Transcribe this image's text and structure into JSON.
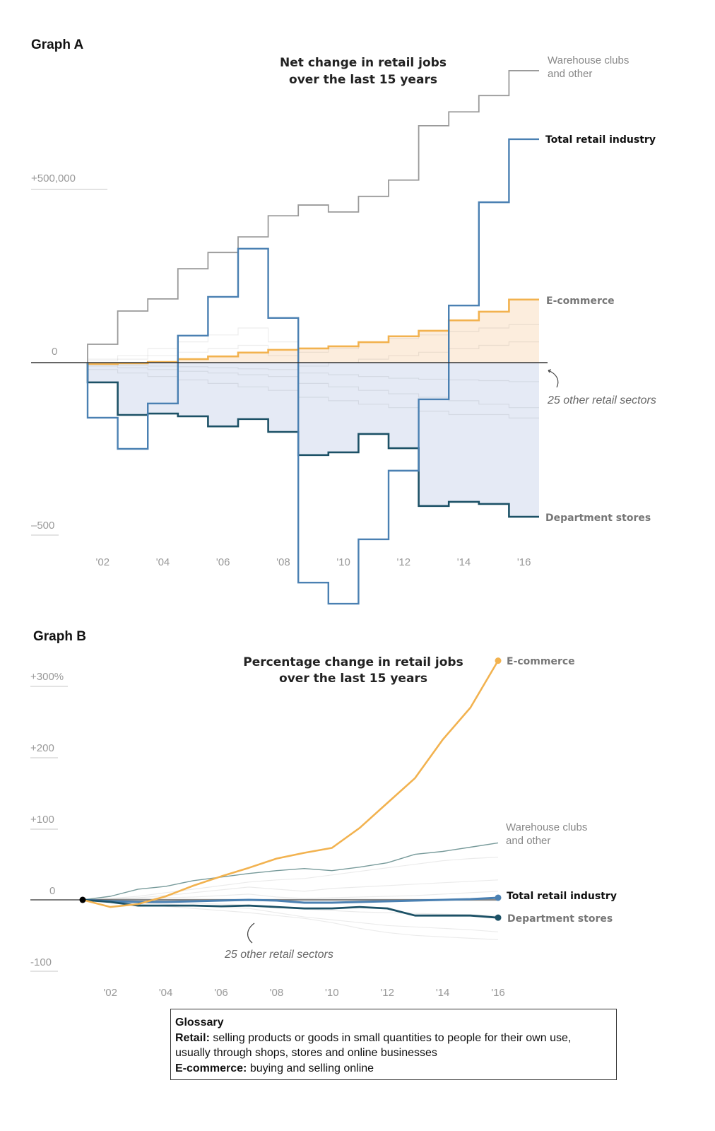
{
  "colors": {
    "warehouse": "#9a9a9a",
    "total": "#4a80b2",
    "ecommerce": "#f2b24f",
    "department": "#1c5166",
    "other": "#d8d8d8",
    "neg_fill": "#e5eaf5",
    "pos_fill": "#fbe9d4",
    "zero": "#333333"
  },
  "chart_data": [
    {
      "id": "graph-a",
      "label": "Graph A",
      "type": "line",
      "step": true,
      "title": [
        "Net change in retail jobs",
        "over the last 15 years"
      ],
      "x": [
        2002,
        2003,
        2004,
        2005,
        2006,
        2007,
        2008,
        2009,
        2010,
        2011,
        2012,
        2013,
        2014,
        2015,
        2016
      ],
      "x_tick_labels": [
        "'02",
        "'04",
        "'06",
        "'08",
        "'10",
        "'12",
        "'14",
        "'16"
      ],
      "y_tick_labels": [
        "+500,000",
        "0",
        "–500"
      ],
      "ylim": [
        -700000,
        850000
      ],
      "series": [
        {
          "key": "warehouse",
          "name": "Warehouse clubs and other",
          "label_lines": [
            "Warehouse clubs",
            "and other"
          ],
          "values": [
            53000,
            149000,
            184000,
            271000,
            318000,
            363000,
            424000,
            455000,
            435000,
            480000,
            527000,
            684000,
            724000,
            771000,
            843000
          ]
        },
        {
          "key": "total",
          "name": "Total retail industry",
          "values": [
            -159000,
            -249000,
            -118000,
            78000,
            190000,
            329000,
            129000,
            -635000,
            -696000,
            -510000,
            -312000,
            -106000,
            165000,
            463000,
            645000
          ]
        },
        {
          "key": "ecommerce",
          "name": "E-commerce",
          "values": [
            -4000,
            -2000,
            2000,
            10000,
            18000,
            29000,
            37000,
            41000,
            47000,
            59000,
            76000,
            92000,
            122000,
            147000,
            182000
          ]
        },
        {
          "key": "department",
          "name": "Department stores",
          "values": [
            -57000,
            -151000,
            -147000,
            -155000,
            -184000,
            -163000,
            -200000,
            -267000,
            -259000,
            -206000,
            -247000,
            -414000,
            -402000,
            -408000,
            -445000
          ]
        }
      ],
      "other_sectors": {
        "name": "25 other retail sectors",
        "series": [
          [
            10000,
            20000,
            40000,
            60000,
            80000,
            100000,
            60000,
            30000,
            40000,
            60000,
            70000,
            80000,
            90000,
            100000,
            110000
          ],
          [
            5000,
            10000,
            20000,
            30000,
            40000,
            50000,
            20000,
            -10000,
            0,
            10000,
            20000,
            30000,
            40000,
            50000,
            60000
          ],
          [
            -10000,
            -15000,
            -20000,
            -25000,
            -30000,
            -35000,
            -40000,
            -60000,
            -70000,
            -80000,
            -90000,
            -100000,
            -110000,
            -120000,
            -130000
          ],
          [
            -20000,
            -30000,
            -40000,
            -50000,
            -60000,
            -70000,
            -80000,
            -100000,
            -110000,
            -120000,
            -130000,
            -140000,
            -150000,
            -150000,
            -160000
          ],
          [
            -5000,
            -8000,
            -10000,
            -12000,
            -15000,
            -18000,
            -20000,
            -30000,
            -35000,
            -40000,
            -45000,
            -48000,
            -50000,
            -52000,
            -55000
          ]
        ]
      }
    },
    {
      "id": "graph-b",
      "label": "Graph B",
      "type": "line",
      "title": [
        "Percentage change in retail jobs",
        "over the last 15 years"
      ],
      "x": [
        2001,
        2002,
        2003,
        2004,
        2005,
        2006,
        2007,
        2008,
        2009,
        2010,
        2011,
        2012,
        2013,
        2014,
        2015,
        2016
      ],
      "x_tick_labels": [
        "'02",
        "'04",
        "'06",
        "'08",
        "'10",
        "'12",
        "'14",
        "'16"
      ],
      "y_tick_labels": [
        "+300%",
        "+200",
        "+100",
        "0",
        "-100"
      ],
      "ylim": [
        -100,
        340
      ],
      "series": [
        {
          "key": "ecommerce",
          "name": "E-commerce",
          "values": [
            0,
            -10,
            -6,
            5,
            20,
            33,
            45,
            58,
            66,
            73,
            101,
            136,
            171,
            225,
            270,
            336
          ]
        },
        {
          "key": "warehouse",
          "name": "Warehouse clubs and other",
          "label_lines": [
            "Warehouse clubs",
            "and other"
          ],
          "values": [
            0,
            5,
            15,
            19,
            27,
            32,
            37,
            41,
            44,
            41,
            46,
            52,
            64,
            68,
            74,
            80
          ]
        },
        {
          "key": "total",
          "name": "Total retail industry",
          "values": [
            0,
            -2,
            -3,
            -3,
            -2,
            -1,
            0,
            -1,
            -4,
            -4,
            -3,
            -2,
            -1,
            0,
            1,
            3
          ]
        },
        {
          "key": "department",
          "name": "Department stores",
          "values": [
            0,
            -3,
            -8,
            -8,
            -8,
            -9,
            -8,
            -10,
            -12,
            -12,
            -10,
            -12,
            -22,
            -22,
            -22,
            -25
          ]
        }
      ],
      "other_sectors": {
        "name": "25 other retail sectors",
        "series": [
          [
            0,
            2,
            5,
            10,
            15,
            20,
            25,
            28,
            30,
            35,
            40,
            45,
            50,
            55,
            58,
            60
          ],
          [
            0,
            1,
            3,
            6,
            10,
            14,
            18,
            15,
            12,
            16,
            18,
            20,
            22,
            24,
            26,
            28
          ],
          [
            0,
            -2,
            -4,
            -6,
            -8,
            -10,
            -12,
            -18,
            -24,
            -28,
            -32,
            -36,
            -38,
            -40,
            -42,
            -45
          ],
          [
            0,
            -3,
            -6,
            -9,
            -12,
            -15,
            -18,
            -22,
            -26,
            -32,
            -40,
            -46,
            -50,
            -52,
            -54,
            -56
          ],
          [
            0,
            1,
            2,
            3,
            4,
            6,
            8,
            4,
            2,
            3,
            4,
            5,
            6,
            8,
            10,
            12
          ],
          [
            0,
            -1,
            -2,
            -4,
            -5,
            -6,
            -7,
            -10,
            -13,
            -15,
            -17,
            -18,
            -19,
            -20,
            -21,
            -22
          ]
        ]
      }
    }
  ],
  "glossary": {
    "heading": "Glossary",
    "retail_term": "Retail:",
    "retail_def_1": " selling products or goods in small quantities to people for their own use,",
    "retail_def_2": "usually through shops, stores and online businesses",
    "ecommerce_term": "E-commerce:",
    "ecommerce_def": " buying and selling online"
  }
}
